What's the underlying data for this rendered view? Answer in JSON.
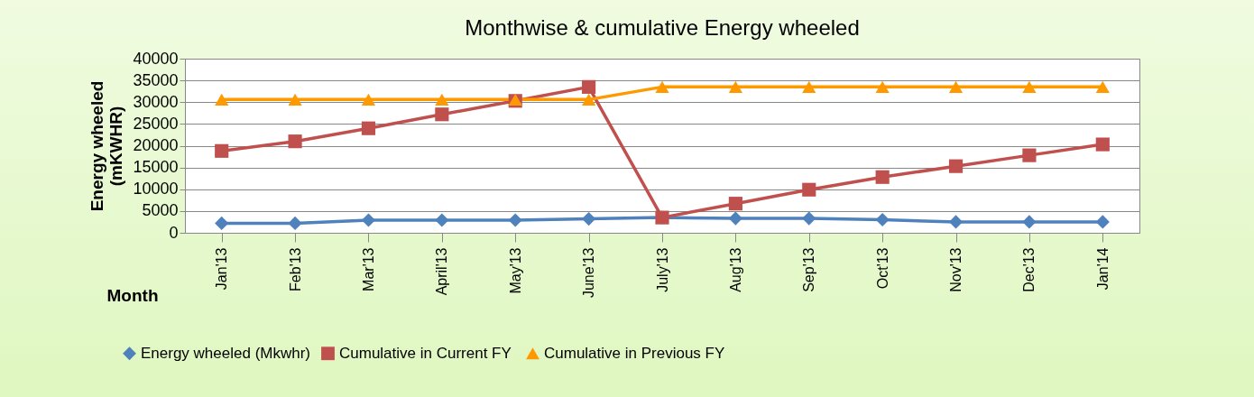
{
  "chart_data": {
    "type": "line",
    "title": "Monthwise & cumulative Energy wheeled",
    "xlabel": "Month",
    "ylabel": "Energy wheeled (mKWHR)",
    "categories": [
      "Jan'13",
      "Feb'13",
      "Mar'13",
      "April'13",
      "May'13",
      "June'13",
      "July'13",
      "Aug'13",
      "Sep'13",
      "Oct'13",
      "Nov'13",
      "Dec'13",
      "Jan'14"
    ],
    "series": [
      {
        "name": "Energy wheeled (Mkwhr)",
        "color": "#4f81bd",
        "marker": "diamond",
        "values": [
          2200,
          2200,
          2900,
          2900,
          2900,
          3200,
          3500,
          3300,
          3300,
          3000,
          2500,
          2500,
          2500
        ]
      },
      {
        "name": "Cumulative in Current  FY",
        "color": "#c0504d",
        "marker": "square",
        "values": [
          18800,
          21000,
          24000,
          27200,
          30300,
          33500,
          3500,
          6700,
          9900,
          12800,
          15300,
          17800,
          20300
        ]
      },
      {
        "name": "Cumulative in Previous FY",
        "color": "#ff9900",
        "marker": "triangle",
        "values": [
          30600,
          30600,
          30600,
          30600,
          30600,
          30600,
          33500,
          33500,
          33500,
          33500,
          33500,
          33500,
          33500
        ]
      }
    ],
    "ylim": [
      0,
      40000
    ],
    "yticks": [
      0,
      5000,
      10000,
      15000,
      20000,
      25000,
      30000,
      35000,
      40000
    ],
    "grid": "y",
    "legend": "bottom"
  }
}
